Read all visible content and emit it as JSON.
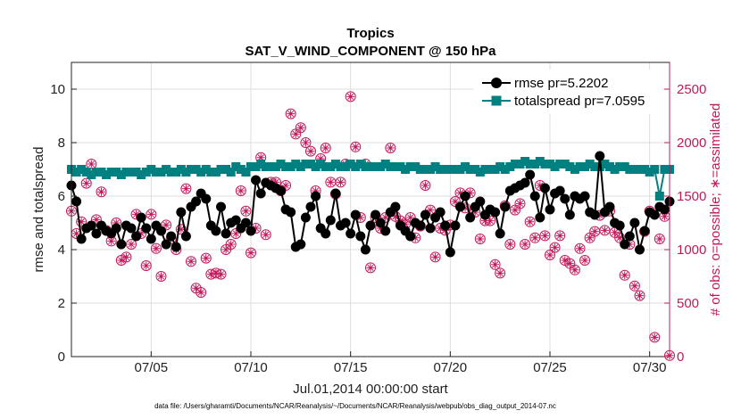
{
  "chart_data": {
    "type": "line",
    "title": "Tropics",
    "subtitle": "SAT_V_WIND_COMPONENT @ 150 hPa",
    "xlabel": "Jul.01,2014 00:00:00 start",
    "ylabel_left": "rmse and totalspread",
    "ylabel_right": "# of obs: o=possible; ∗=assimilated",
    "xlim": [
      1,
      31
    ],
    "ylim_left": [
      0,
      11
    ],
    "ylim_right": [
      0,
      2750
    ],
    "xticks": [
      5,
      10,
      15,
      20,
      25,
      30
    ],
    "xtick_labels": [
      "07/05",
      "07/10",
      "07/15",
      "07/20",
      "07/25",
      "07/30"
    ],
    "yticks_left": [
      0,
      2,
      4,
      6,
      8,
      10
    ],
    "ytick_labels_left": [
      "0",
      "2",
      "4",
      "6",
      "8",
      "10"
    ],
    "yticks_right": [
      0,
      500,
      1000,
      1500,
      2000,
      2500
    ],
    "ytick_labels_right": [
      "0",
      "500",
      "1000",
      "1500",
      "2000",
      "2500"
    ],
    "legend_position": "top-right",
    "series": [
      {
        "name": "rmse pr=5.2202",
        "axis": "left",
        "color": "#000000",
        "marker": "circle",
        "x": [
          1.0,
          1.25,
          1.5,
          1.75,
          2.0,
          2.25,
          2.5,
          2.75,
          3.0,
          3.25,
          3.5,
          3.75,
          4.0,
          4.25,
          4.5,
          4.75,
          5.0,
          5.25,
          5.5,
          5.75,
          6.0,
          6.25,
          6.5,
          6.75,
          7.0,
          7.25,
          7.5,
          7.75,
          8.0,
          8.25,
          8.5,
          8.75,
          9.0,
          9.25,
          9.5,
          9.75,
          10.0,
          10.25,
          10.5,
          10.75,
          11.0,
          11.25,
          11.5,
          11.75,
          12.0,
          12.25,
          12.5,
          12.75,
          13.0,
          13.25,
          13.5,
          13.75,
          14.0,
          14.25,
          14.5,
          14.75,
          15.0,
          15.25,
          15.5,
          15.75,
          16.0,
          16.25,
          16.5,
          16.75,
          17.0,
          17.25,
          17.5,
          17.75,
          18.0,
          18.25,
          18.5,
          18.75,
          19.0,
          19.25,
          19.5,
          19.75,
          20.0,
          20.25,
          20.5,
          20.75,
          21.0,
          21.25,
          21.5,
          21.75,
          22.0,
          22.25,
          22.5,
          22.75,
          23.0,
          23.25,
          23.5,
          23.75,
          24.0,
          24.25,
          24.5,
          24.75,
          25.0,
          25.25,
          25.5,
          25.75,
          26.0,
          26.25,
          26.5,
          26.75,
          27.0,
          27.25,
          27.5,
          27.75,
          28.0,
          28.25,
          28.5,
          28.75,
          29.0,
          29.25,
          29.5,
          29.75,
          30.0,
          30.25,
          30.5,
          30.75,
          31.0
        ],
        "y": [
          6.4,
          5.8,
          4.4,
          4.8,
          4.9,
          4.6,
          4.9,
          4.7,
          4.6,
          4.8,
          4.2,
          4.9,
          4.8,
          4.5,
          5.2,
          4.8,
          4.4,
          4.9,
          4.7,
          4.2,
          4.5,
          4.1,
          5.4,
          4.5,
          5.6,
          5.8,
          6.1,
          5.9,
          4.9,
          4.7,
          5.6,
          4.6,
          5.0,
          5.1,
          4.8,
          5.0,
          4.7,
          6.6,
          6.1,
          6.5,
          6.4,
          6.3,
          6.2,
          5.5,
          5.4,
          4.1,
          4.2,
          5.2,
          5.6,
          6.0,
          4.8,
          4.6,
          5.1,
          6.1,
          4.9,
          5.0,
          4.6,
          5.3,
          4.5,
          4.0,
          4.9,
          5.3,
          5.0,
          4.7,
          5.4,
          5.6,
          4.9,
          4.7,
          4.5,
          5.0,
          4.9,
          5.3,
          4.8,
          5.2,
          5.4,
          4.9,
          3.9,
          4.9,
          5.6,
          6.0,
          5.2,
          5.6,
          5.8,
          5.3,
          5.5,
          5.4,
          4.6,
          5.6,
          6.2,
          6.3,
          6.4,
          6.5,
          6.8,
          6.0,
          5.2,
          6.3,
          5.5,
          6.1,
          6.2,
          5.9,
          5.3,
          6.0,
          5.9,
          6.0,
          5.4,
          5.3,
          7.5,
          5.4,
          5.6,
          5.0,
          4.9,
          4.2,
          4.5,
          5.0,
          4.0,
          4.7,
          5.4,
          5.3,
          5.6,
          5.5,
          5.8
        ]
      },
      {
        "name": "totalspread pr=7.0595",
        "axis": "left",
        "color": "#008080",
        "marker": "square",
        "x": [
          1.0,
          1.25,
          1.5,
          1.75,
          2.0,
          2.25,
          2.5,
          2.75,
          3.0,
          3.25,
          3.5,
          3.75,
          4.0,
          4.25,
          4.5,
          4.75,
          5.0,
          5.25,
          5.5,
          5.75,
          6.0,
          6.25,
          6.5,
          6.75,
          7.0,
          7.25,
          7.5,
          7.75,
          8.0,
          8.25,
          8.5,
          8.75,
          9.0,
          9.25,
          9.5,
          9.75,
          10.0,
          10.25,
          10.5,
          10.75,
          11.0,
          11.25,
          11.5,
          11.75,
          12.0,
          12.25,
          12.5,
          12.75,
          13.0,
          13.25,
          13.5,
          13.75,
          14.0,
          14.25,
          14.5,
          14.75,
          15.0,
          15.25,
          15.5,
          15.75,
          16.0,
          16.25,
          16.5,
          16.75,
          17.0,
          17.25,
          17.5,
          17.75,
          18.0,
          18.25,
          18.5,
          18.75,
          19.0,
          19.25,
          19.5,
          19.75,
          20.0,
          20.25,
          20.5,
          20.75,
          21.0,
          21.25,
          21.5,
          21.75,
          22.0,
          22.25,
          22.5,
          22.75,
          23.0,
          23.25,
          23.5,
          23.75,
          24.0,
          24.25,
          24.5,
          24.75,
          25.0,
          25.25,
          25.5,
          25.75,
          26.0,
          26.25,
          26.5,
          26.75,
          27.0,
          27.25,
          27.5,
          27.75,
          28.0,
          28.25,
          28.5,
          28.75,
          29.0,
          29.25,
          29.5,
          29.75,
          30.0,
          30.25,
          30.5,
          30.75,
          31.0
        ],
        "y": [
          7.0,
          6.9,
          7.0,
          6.9,
          6.8,
          6.9,
          6.9,
          6.8,
          6.9,
          6.9,
          6.8,
          6.9,
          6.9,
          6.9,
          6.8,
          6.9,
          7.0,
          6.9,
          6.9,
          7.0,
          6.9,
          6.9,
          7.0,
          6.9,
          7.0,
          7.0,
          6.9,
          7.0,
          6.9,
          6.9,
          7.0,
          7.0,
          6.9,
          7.1,
          7.0,
          6.9,
          7.1,
          7.1,
          7.2,
          7.1,
          7.1,
          7.1,
          7.2,
          7.1,
          7.1,
          7.2,
          7.1,
          7.2,
          7.2,
          7.1,
          7.2,
          7.1,
          7.1,
          7.2,
          7.1,
          7.1,
          7.2,
          7.1,
          7.2,
          7.1,
          7.1,
          7.1,
          7.1,
          7.2,
          7.1,
          7.1,
          7.1,
          7.0,
          7.1,
          7.1,
          7.0,
          7.0,
          7.0,
          7.1,
          7.0,
          7.0,
          7.0,
          7.0,
          7.0,
          7.1,
          7.0,
          7.0,
          6.9,
          7.0,
          7.0,
          7.0,
          7.1,
          7.0,
          7.1,
          7.2,
          7.2,
          7.3,
          7.2,
          7.2,
          7.3,
          7.2,
          7.2,
          7.1,
          7.2,
          7.2,
          7.1,
          7.0,
          7.1,
          7.1,
          7.2,
          7.1,
          7.1,
          7.2,
          7.1,
          7.0,
          7.1,
          7.1,
          7.0,
          7.0,
          7.0,
          7.0,
          6.9,
          7.0,
          6.0,
          7.0,
          7.0
        ]
      },
      {
        "name": "# of obs possible",
        "axis": "right",
        "color": "#c2185b",
        "marker": "circle-open",
        "x": [
          1.0,
          1.25,
          1.5,
          1.75,
          2.0,
          2.25,
          2.5,
          2.75,
          3.0,
          3.25,
          3.5,
          3.75,
          4.0,
          4.25,
          4.5,
          4.75,
          5.0,
          5.25,
          5.5,
          5.75,
          6.0,
          6.25,
          6.5,
          6.75,
          7.0,
          7.25,
          7.5,
          7.75,
          8.0,
          8.25,
          8.5,
          8.75,
          9.0,
          9.25,
          9.5,
          9.75,
          10.0,
          10.25,
          10.5,
          10.75,
          11.0,
          11.25,
          11.5,
          11.75,
          12.0,
          12.25,
          12.5,
          12.75,
          13.0,
          13.25,
          13.5,
          13.75,
          14.0,
          14.25,
          14.5,
          14.75,
          15.0,
          15.25,
          15.5,
          15.75,
          16.0,
          16.25,
          16.5,
          16.75,
          17.0,
          17.25,
          17.5,
          17.75,
          18.0,
          18.25,
          18.5,
          18.75,
          19.0,
          19.25,
          19.5,
          19.75,
          20.0,
          20.25,
          20.5,
          20.75,
          21.0,
          21.25,
          21.5,
          21.75,
          22.0,
          22.25,
          22.5,
          22.75,
          23.0,
          23.25,
          23.5,
          23.75,
          24.0,
          24.25,
          24.5,
          24.75,
          25.0,
          25.25,
          25.5,
          25.75,
          26.0,
          26.25,
          26.5,
          26.75,
          27.0,
          27.25,
          27.5,
          27.75,
          28.0,
          28.25,
          28.5,
          28.75,
          29.0,
          29.25,
          29.5,
          29.75,
          30.0,
          30.25,
          30.5,
          30.75,
          31.0
        ],
        "y": [
          1360,
          1150,
          1260,
          1620,
          1800,
          1280,
          1540,
          1180,
          1080,
          1250,
          900,
          930,
          1050,
          1330,
          1150,
          850,
          1330,
          1010,
          750,
          1230,
          1100,
          1000,
          1190,
          1570,
          890,
          640,
          600,
          920,
          770,
          780,
          770,
          1000,
          1050,
          1150,
          1550,
          1360,
          970,
          1200,
          1860,
          1140,
          1630,
          1630,
          1550,
          1600,
          2270,
          2080,
          2140,
          2000,
          1920,
          1550,
          1850,
          1950,
          1630,
          1520,
          1630,
          1800,
          2430,
          1960,
          1300,
          1800,
          830,
          1300,
          1200,
          1300,
          1950,
          1310,
          1270,
          1240,
          1300,
          1110,
          1220,
          1600,
          1370,
          930,
          1200,
          1180,
          1230,
          1450,
          1530,
          1390,
          1530,
          1350,
          1100,
          1270,
          1270,
          860,
          780,
          1410,
          1050,
          1370,
          1430,
          1050,
          1260,
          1110,
          1600,
          1130,
          950,
          1020,
          1130,
          900,
          870,
          810,
          1010,
          900,
          1110,
          1170,
          1320,
          1180,
          1360,
          1160,
          1110,
          760,
          1050,
          660,
          570,
          1170,
          1360,
          180,
          1100,
          1310,
          10
        ]
      },
      {
        "name": "# of obs assimilated",
        "axis": "right",
        "color": "#c2185b",
        "marker": "asterisk",
        "x": [
          1.0,
          1.25,
          1.5,
          1.75,
          2.0,
          2.25,
          2.5,
          2.75,
          3.0,
          3.25,
          3.5,
          3.75,
          4.0,
          4.25,
          4.5,
          4.75,
          5.0,
          5.25,
          5.5,
          5.75,
          6.0,
          6.25,
          6.5,
          6.75,
          7.0,
          7.25,
          7.5,
          7.75,
          8.0,
          8.25,
          8.5,
          8.75,
          9.0,
          9.25,
          9.5,
          9.75,
          10.0,
          10.25,
          10.5,
          10.75,
          11.0,
          11.25,
          11.5,
          11.75,
          12.0,
          12.25,
          12.5,
          12.75,
          13.0,
          13.25,
          13.5,
          13.75,
          14.0,
          14.25,
          14.5,
          14.75,
          15.0,
          15.25,
          15.5,
          15.75,
          16.0,
          16.25,
          16.5,
          16.75,
          17.0,
          17.25,
          17.5,
          17.75,
          18.0,
          18.25,
          18.5,
          18.75,
          19.0,
          19.25,
          19.5,
          19.75,
          20.0,
          20.25,
          20.5,
          20.75,
          21.0,
          21.25,
          21.5,
          21.75,
          22.0,
          22.25,
          22.5,
          22.75,
          23.0,
          23.25,
          23.5,
          23.75,
          24.0,
          24.25,
          24.5,
          24.75,
          25.0,
          25.25,
          25.5,
          25.75,
          26.0,
          26.25,
          26.5,
          26.75,
          27.0,
          27.25,
          27.5,
          27.75,
          28.0,
          28.25,
          28.5,
          28.75,
          29.0,
          29.25,
          29.5,
          29.75,
          30.0,
          30.25,
          30.5,
          30.75,
          31.0
        ],
        "y": [
          1360,
          1150,
          1260,
          1620,
          1800,
          1280,
          1540,
          1180,
          1080,
          1250,
          900,
          930,
          1050,
          1330,
          1150,
          850,
          1330,
          1010,
          750,
          1230,
          1100,
          1000,
          1190,
          1570,
          890,
          640,
          600,
          920,
          770,
          780,
          770,
          1000,
          1050,
          1150,
          1550,
          1360,
          970,
          1200,
          1860,
          1140,
          1630,
          1630,
          1550,
          1600,
          2270,
          2080,
          2140,
          2000,
          1920,
          1550,
          1850,
          1950,
          1630,
          1520,
          1630,
          1800,
          2430,
          1960,
          1300,
          1800,
          830,
          1300,
          1200,
          1300,
          1950,
          1310,
          1270,
          1240,
          1300,
          1110,
          1220,
          1600,
          1370,
          930,
          1200,
          1180,
          1230,
          1450,
          1530,
          1390,
          1530,
          1350,
          1100,
          1270,
          1270,
          860,
          780,
          1410,
          1050,
          1370,
          1430,
          1050,
          1260,
          1110,
          1600,
          1130,
          950,
          1020,
          1130,
          900,
          870,
          810,
          1010,
          900,
          1110,
          1170,
          1320,
          1180,
          1360,
          1160,
          1110,
          760,
          1050,
          660,
          570,
          1170,
          1360,
          180,
          1100,
          1310,
          10
        ]
      }
    ],
    "footnote": "data file: /Users/gharamti/Documents/NCAR/Reanalysis/~/Documents/NCAR/Reanalysis/webpub/obs_diag_output_2014-07.nc"
  }
}
